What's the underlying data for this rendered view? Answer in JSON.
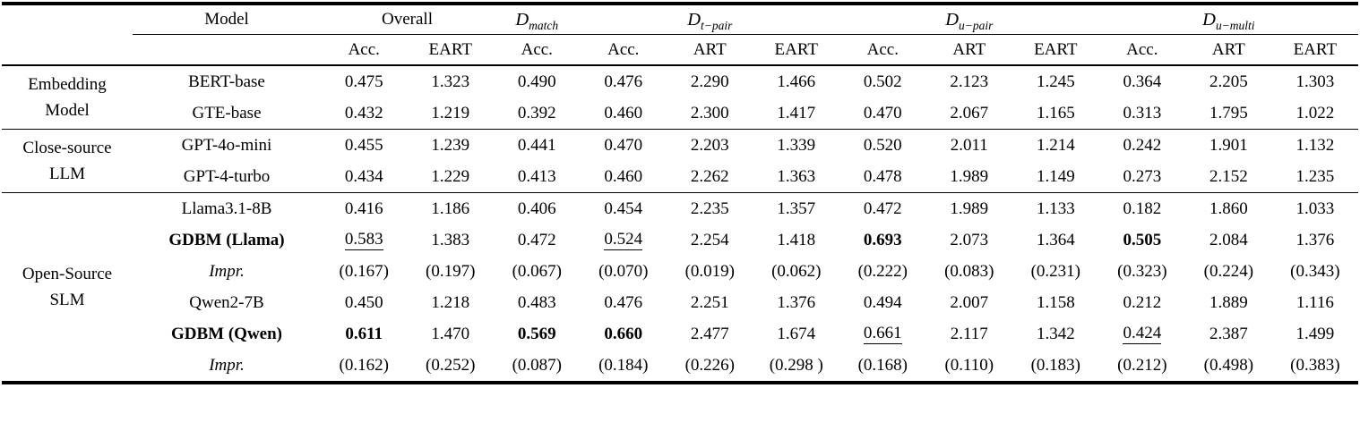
{
  "table": {
    "header": {
      "groups": [
        {
          "label": "Model"
        },
        {
          "label": "Overall"
        },
        {
          "prefix": "D",
          "sub": "match"
        },
        {
          "prefix": "D",
          "sub": "t−pair"
        },
        {
          "prefix": "D",
          "sub": "u−pair"
        },
        {
          "prefix": "D",
          "sub": "u−multi"
        }
      ],
      "metric_labels": [
        "Acc.",
        "EART",
        "Acc.",
        "Acc.",
        "ART",
        "EART",
        "Acc.",
        "ART",
        "EART",
        "Acc.",
        "ART",
        "EART"
      ]
    },
    "groups": [
      {
        "label_lines": [
          "Embedding",
          "Model"
        ],
        "rows": [
          {
            "model": "BERT-base",
            "model_style": "normal",
            "values": [
              "0.475",
              "1.323",
              "0.490",
              "0.476",
              "2.290",
              "1.466",
              "0.502",
              "2.123",
              "1.245",
              "0.364",
              "2.205",
              "1.303"
            ]
          },
          {
            "model": "GTE-base",
            "model_style": "normal",
            "values": [
              "0.432",
              "1.219",
              "0.392",
              "0.460",
              "2.300",
              "1.417",
              "0.470",
              "2.067",
              "1.165",
              "0.313",
              "1.795",
              "1.022"
            ]
          }
        ]
      },
      {
        "label_lines": [
          "Close-source",
          "LLM"
        ],
        "rows": [
          {
            "model": "GPT-4o-mini",
            "model_style": "normal",
            "values": [
              "0.455",
              "1.239",
              "0.441",
              "0.470",
              "2.203",
              "1.339",
              "0.520",
              "2.011",
              "1.214",
              "0.242",
              "1.901",
              "1.132"
            ]
          },
          {
            "model": "GPT-4-turbo",
            "model_style": "normal",
            "values": [
              "0.434",
              "1.229",
              "0.413",
              "0.460",
              "2.262",
              "1.363",
              "0.478",
              "1.989",
              "1.149",
              "0.273",
              "2.152",
              "1.235"
            ]
          }
        ]
      },
      {
        "label_lines": [
          "Open-Source",
          "SLM"
        ],
        "rows": [
          {
            "model": "Llama3.1-8B",
            "model_style": "normal",
            "values": [
              "0.416",
              "1.186",
              "0.406",
              "0.454",
              "2.235",
              "1.357",
              "0.472",
              "1.989",
              "1.133",
              "0.182",
              "1.860",
              "1.033"
            ]
          },
          {
            "model": "GDBM (Llama)",
            "model_style": "bold",
            "values": [
              "0.583",
              "1.383",
              "0.472",
              "0.524",
              "2.254",
              "1.418",
              "0.693",
              "2.073",
              "1.364",
              "0.505",
              "2.084",
              "1.376"
            ],
            "value_styles": {
              "0": "underline",
              "3": "underline",
              "6": "bold",
              "9": "bold"
            }
          },
          {
            "model": "Impr.",
            "model_style": "italic",
            "values": [
              "(0.167)",
              "(0.197)",
              "(0.067)",
              "(0.070)",
              "(0.019)",
              "(0.062)",
              "(0.222)",
              "(0.083)",
              "(0.231)",
              "(0.323)",
              "(0.224)",
              "(0.343)"
            ]
          },
          {
            "model": "Qwen2-7B",
            "model_style": "normal",
            "values": [
              "0.450",
              "1.218",
              "0.483",
              "0.476",
              "2.251",
              "1.376",
              "0.494",
              "2.007",
              "1.158",
              "0.212",
              "1.889",
              "1.116"
            ]
          },
          {
            "model": "GDBM (Qwen)",
            "model_style": "bold",
            "values": [
              "0.611",
              "1.470",
              "0.569",
              "0.660",
              "2.477",
              "1.674",
              "0.661",
              "2.117",
              "1.342",
              "0.424",
              "2.387",
              "1.499"
            ],
            "value_styles": {
              "0": "bold",
              "2": "bold",
              "3": "bold",
              "6": "underline",
              "9": "underline"
            }
          },
          {
            "model": "Impr.",
            "model_style": "italic",
            "values": [
              "(0.162)",
              "(0.252)",
              "(0.087)",
              "(0.184)",
              "(0.226)",
              "(0.298 )",
              "(0.168)",
              "(0.110)",
              "(0.183)",
              "(0.212)",
              "(0.498)",
              "(0.383)"
            ]
          }
        ]
      }
    ]
  }
}
